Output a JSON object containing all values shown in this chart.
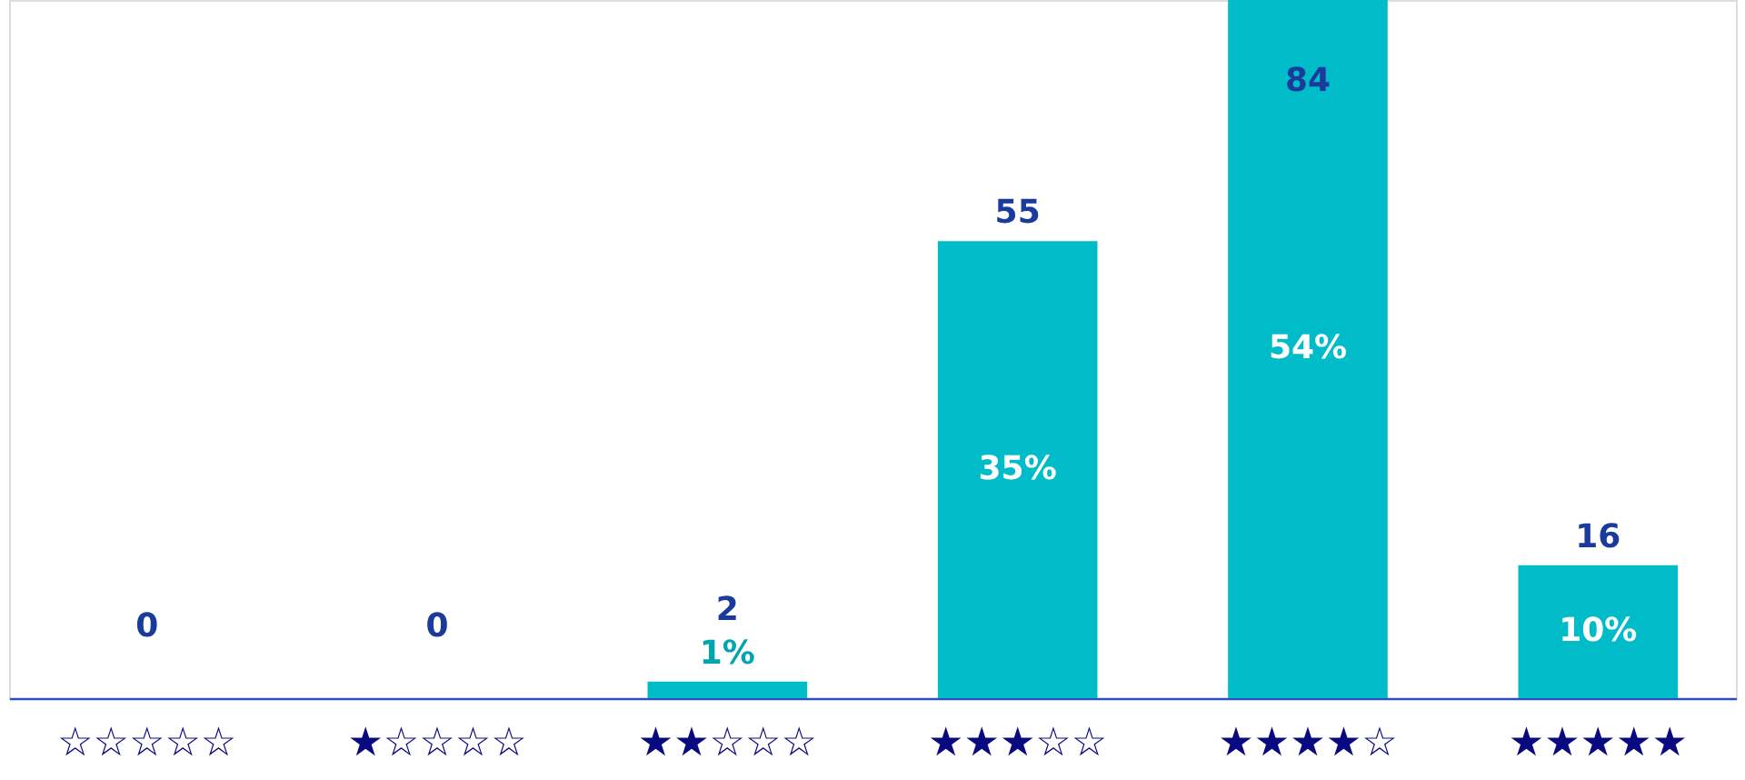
{
  "chart_data": {
    "type": "bar",
    "categories": [
      "☆☆☆☆☆",
      "★☆☆☆☆",
      "★★☆☆☆",
      "★★★☆☆",
      "★★★★☆",
      "★★★★★"
    ],
    "values": [
      0,
      0,
      2,
      55,
      84,
      16
    ],
    "color": "#00bcc8",
    "data_labels": true,
    "annotations": [
      "1%",
      "35%",
      "54%",
      "10%"
    ]
  }
}
